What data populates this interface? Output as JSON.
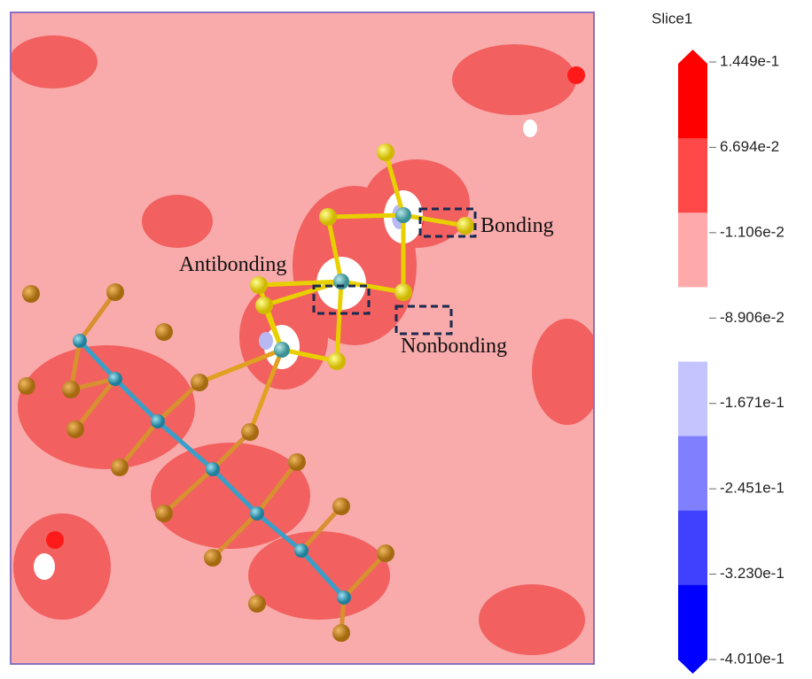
{
  "colorbar": {
    "title": "Slice1",
    "ticks": [
      "1.449e-1",
      "6.694e-2",
      "-1.106e-2",
      "-8.906e-2",
      "-1.671e-1",
      "-2.451e-1",
      "-3.230e-1",
      "-4.010e-1"
    ]
  },
  "annotations": {
    "bonding": "Bonding",
    "antibonding": "Antibonding",
    "nonbonding": "Nonbonding"
  }
}
